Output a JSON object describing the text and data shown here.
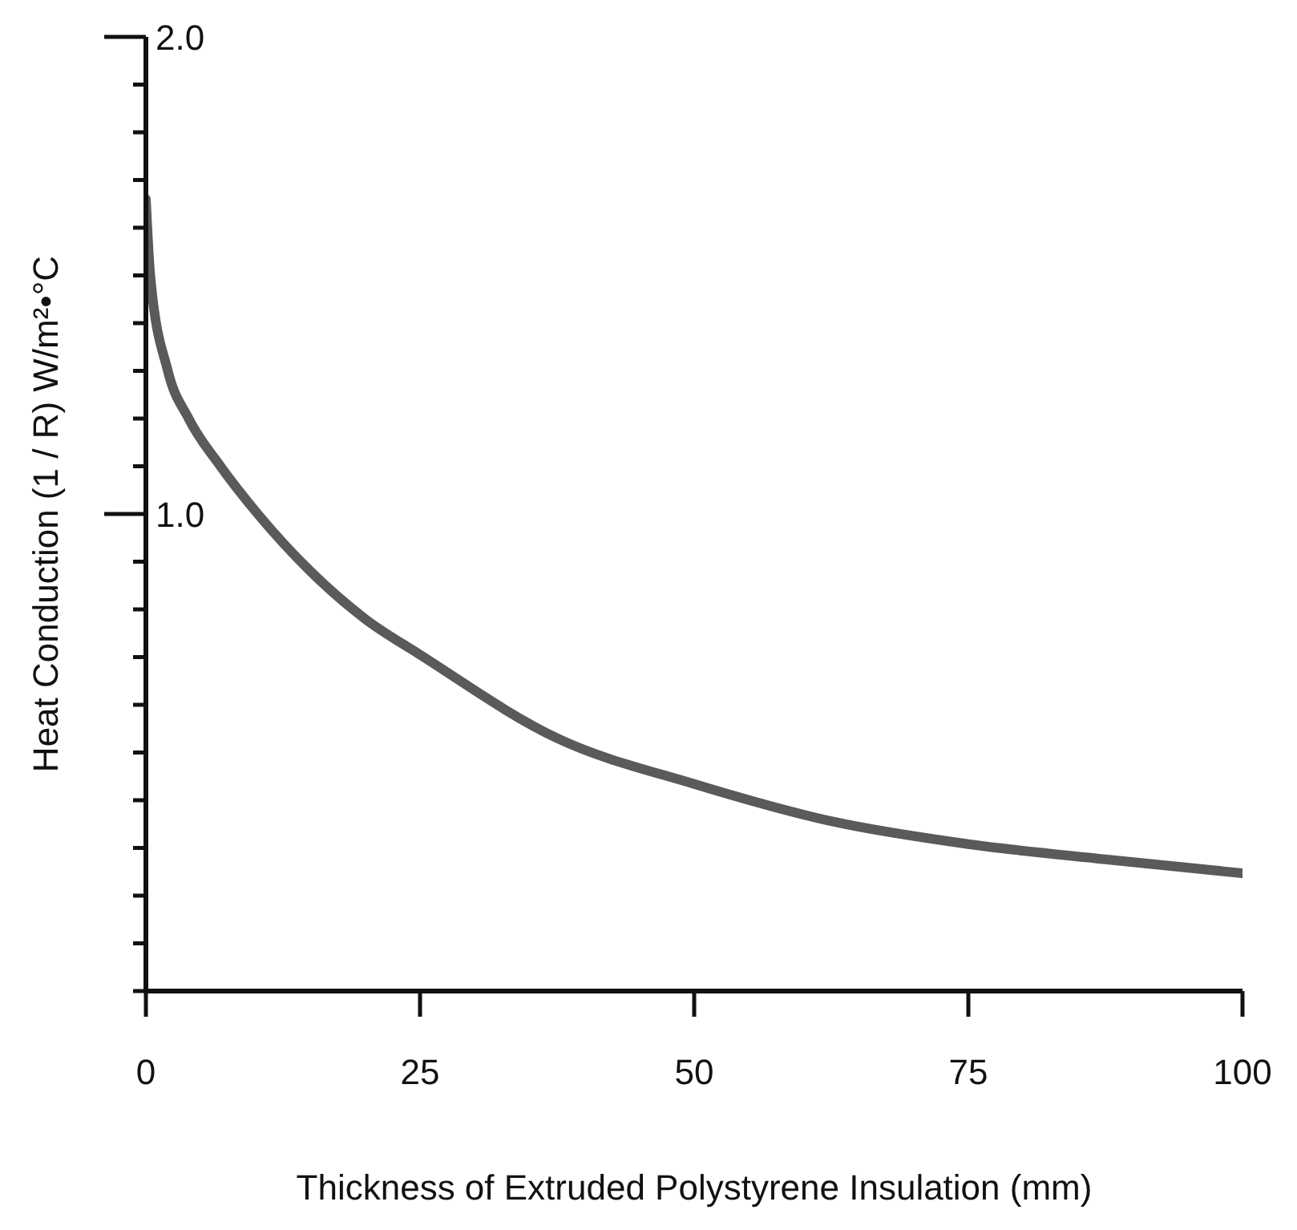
{
  "chart_data": {
    "type": "line",
    "xlabel": "Thickness of Extruded Polystyrene Insulation (mm)",
    "ylabel": "Heat Conduction (1 / R) W/m²•°C",
    "x": [
      0,
      0.4,
      2,
      3.9,
      6.8,
      10.2,
      15,
      20,
      25,
      37.5,
      50,
      62.5,
      75,
      87.5,
      100
    ],
    "series": [
      {
        "color": "#5a5a5a",
        "values": [
          1.66,
          1.5,
          1.3,
          1.2,
          1.1,
          1.0,
          0.88,
          0.78,
          0.705,
          0.53,
          0.434,
          0.356,
          0.308,
          0.276,
          0.247
        ]
      }
    ],
    "xlim": [
      0,
      100
    ],
    "xticks": [
      0,
      25,
      50,
      75,
      100
    ],
    "ylim": [
      0,
      2
    ],
    "yticks": [
      {
        "value": 0,
        "label": null
      },
      {
        "value": 0.1,
        "label": null
      },
      {
        "value": 0.2,
        "label": null
      },
      {
        "value": 0.3,
        "label": null
      },
      {
        "value": 0.4,
        "label": null
      },
      {
        "value": 0.5,
        "label": null
      },
      {
        "value": 0.6,
        "label": null
      },
      {
        "value": 0.7,
        "label": null
      },
      {
        "value": 0.8,
        "label": null
      },
      {
        "value": 0.9,
        "label": null
      },
      {
        "value": 1,
        "label": "1.0"
      },
      {
        "value": 1.1,
        "label": null
      },
      {
        "value": 1.2,
        "label": null
      },
      {
        "value": 1.3,
        "label": null
      },
      {
        "value": 1.4,
        "label": null
      },
      {
        "value": 1.5,
        "label": null
      },
      {
        "value": 1.6,
        "label": null
      },
      {
        "value": 1.7,
        "label": null
      },
      {
        "value": 1.8,
        "label": null
      },
      {
        "value": 1.9,
        "label": null
      },
      {
        "value": 2,
        "label": "2.0"
      }
    ],
    "grid": false,
    "legend": false
  }
}
